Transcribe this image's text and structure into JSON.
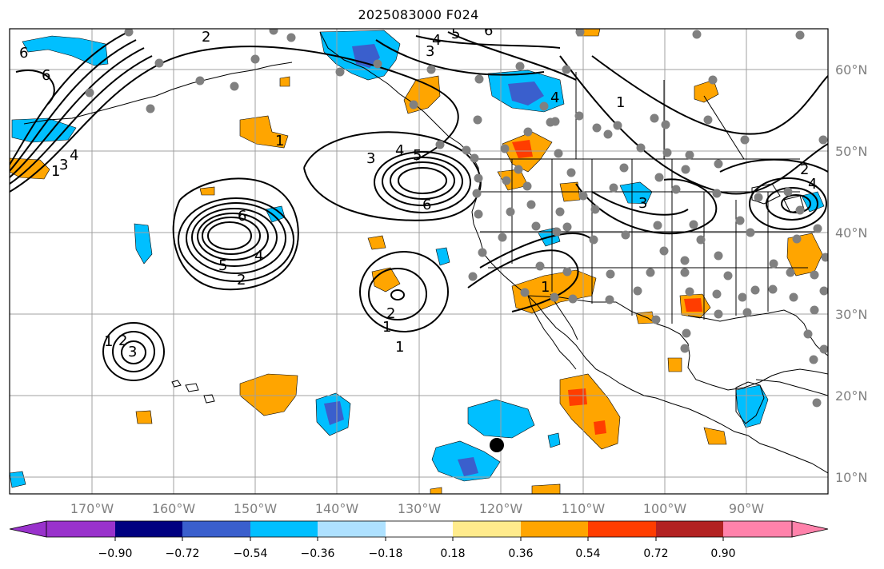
{
  "title": "2025083000 F024",
  "map": {
    "lon_labels": [
      "170°W",
      "160°W",
      "150°W",
      "140°W",
      "130°W",
      "120°W",
      "110°W",
      "100°W",
      "90°W"
    ],
    "lat_labels": [
      "60°N",
      "50°N",
      "40°N",
      "30°N",
      "20°N",
      "10°N"
    ],
    "lon_range": [
      -180,
      -80
    ],
    "lat_range": [
      8,
      65
    ],
    "contour_labels": [
      "6",
      "6",
      "2",
      "4",
      "5",
      "6",
      "3",
      "4",
      "5",
      "6",
      "1",
      "6",
      "5",
      "4",
      "2",
      "3",
      "2",
      "1",
      "1",
      "2",
      "3",
      "1",
      "3",
      "1",
      "2",
      "4",
      "1",
      "4",
      "3",
      "4",
      "1"
    ],
    "storm_marker": "tropical-cyclone-center",
    "colors": {
      "purple": "#9932CC",
      "navy": "#000080",
      "royal_blue": "#3A5FCD",
      "deep_sky_blue": "#00BFFF",
      "light_blue": "#AEE1FF",
      "white": "#FFFFFF",
      "light_yellow": "#FFEB8C",
      "orange": "#FFA500",
      "orange_red": "#FF3D00",
      "firebrick": "#B22222",
      "pink": "#FF82AB",
      "station_dot": "#808080",
      "contour": "#000000",
      "grid": "#A0A0A0"
    }
  },
  "colorbar": {
    "ticks": [
      "−0.90",
      "−0.72",
      "−0.54",
      "−0.36",
      "−0.18",
      "0.18",
      "0.36",
      "0.54",
      "0.72",
      "0.90"
    ],
    "colors": [
      "#9932CC",
      "#000080",
      "#3A5FCD",
      "#00BFFF",
      "#AEE1FF",
      "#FFFFFF",
      "#FFEB8C",
      "#FFA500",
      "#FF3D00",
      "#B22222",
      "#FF82AB"
    ]
  }
}
